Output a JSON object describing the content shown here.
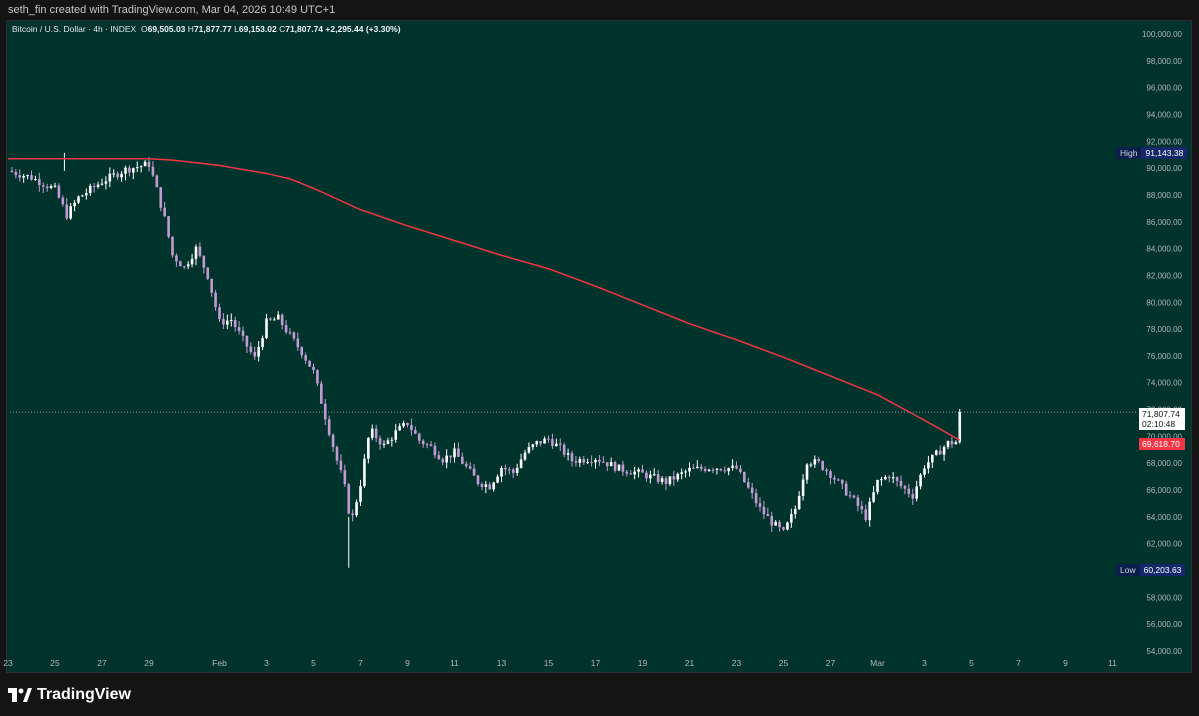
{
  "credit": "seth_fin created with TradingView.com, Mar 04, 2026 10:49 UTC+1",
  "legend": {
    "symbol": "Bitcoin / U.S. Dollar · 4h · INDEX",
    "open_label": "O",
    "open": "69,505.03",
    "high_label": "H",
    "high": "71,877.77",
    "low_label": "L",
    "low": "69,153.02",
    "close_label": "C",
    "close": "71,807.74",
    "change": "+2,295.44 (+3.30%)"
  },
  "markers": {
    "high_label": "High",
    "high_value": "91,143.38",
    "low_label": "Low",
    "low_value": "60,203.63",
    "last_price": "71,807.74",
    "countdown": "02:10:48",
    "ma_value": "69,618.70"
  },
  "brand": "TradingView",
  "colors": {
    "background": "#00332b",
    "up": "#ffffff",
    "down": "#c39bd3",
    "ma_line": "#f23645",
    "price_line": "#b2b5be",
    "axis_text": "#b2b5be"
  },
  "icons": {
    "logo": "tradingview-logo-icon"
  },
  "chart_data": {
    "type": "candlestick",
    "title": "Bitcoin / U.S. Dollar · 4h · INDEX",
    "ylim": [
      53500,
      101000
    ],
    "y_ticks": [
      100000,
      98000,
      96000,
      94000,
      92000,
      90000,
      88000,
      86000,
      84000,
      82000,
      80000,
      78000,
      76000,
      74000,
      72000,
      70000,
      68000,
      66000,
      64000,
      62000,
      60000,
      58000,
      56000,
      54000
    ],
    "y_tick_labels": [
      "100,000.00",
      "98,000.00",
      "96,000.00",
      "94,000.00",
      "92,000.00",
      "90,000.00",
      "88,000.00",
      "86,000.00",
      "84,000.00",
      "82,000.00",
      "80,000.00",
      "78,000.00",
      "76,000.00",
      "74,000.00",
      "72,000.00",
      "70,000.00",
      "68,000.00",
      "66,000.00",
      "64,000.00",
      "62,000.00",
      "60,000.00",
      "58,000.00",
      "56,000.00",
      "54,000.00"
    ],
    "x_ticks": [
      "23",
      "25",
      "27",
      "29",
      "Feb",
      "3",
      "5",
      "7",
      "9",
      "11",
      "13",
      "15",
      "17",
      "19",
      "21",
      "23",
      "25",
      "27",
      "Mar",
      "3",
      "5",
      "7",
      "9",
      "11"
    ],
    "x_tick_days": [
      0,
      2,
      4,
      6,
      9,
      11,
      13,
      15,
      17,
      19,
      21,
      23,
      25,
      27,
      29,
      31,
      33,
      35,
      37,
      39,
      41,
      43,
      45,
      47
    ],
    "candles_per_day": 6,
    "close_path": [
      [
        0,
        89800
      ],
      [
        1,
        89300
      ],
      [
        2,
        88400
      ],
      [
        2.5,
        86500
      ],
      [
        3,
        87800
      ],
      [
        4,
        89000
      ],
      [
        5,
        89900
      ],
      [
        6,
        90300
      ],
      [
        6.3,
        88600
      ],
      [
        6.7,
        86000
      ],
      [
        7,
        83500
      ],
      [
        7.5,
        82600
      ],
      [
        8,
        84000
      ],
      [
        8.5,
        82000
      ],
      [
        9,
        78500
      ],
      [
        9.5,
        78700
      ],
      [
        10,
        77200
      ],
      [
        10.5,
        75800
      ],
      [
        11,
        78500
      ],
      [
        11.5,
        78800
      ],
      [
        12,
        77500
      ],
      [
        12.5,
        76300
      ],
      [
        13,
        74800
      ],
      [
        13.5,
        71500
      ],
      [
        14,
        68200
      ],
      [
        14.3,
        66500
      ],
      [
        14.6,
        63500
      ],
      [
        15,
        66500
      ],
      [
        15.4,
        70500
      ],
      [
        16,
        69300
      ],
      [
        16.5,
        70300
      ],
      [
        17,
        71000
      ],
      [
        17.5,
        69700
      ],
      [
        18,
        69200
      ],
      [
        18.5,
        68300
      ],
      [
        19,
        68800
      ],
      [
        19.5,
        67700
      ],
      [
        20,
        66600
      ],
      [
        20.5,
        66300
      ],
      [
        21,
        67700
      ],
      [
        21.5,
        67300
      ],
      [
        22,
        68800
      ],
      [
        22.5,
        69500
      ],
      [
        23,
        69800
      ],
      [
        23.5,
        69100
      ],
      [
        24,
        68200
      ],
      [
        25,
        68400
      ],
      [
        26,
        67600
      ],
      [
        27,
        67200
      ],
      [
        28,
        66600
      ],
      [
        29,
        67500
      ],
      [
        30,
        67700
      ],
      [
        31,
        67600
      ],
      [
        32,
        64600
      ],
      [
        32.5,
        63600
      ],
      [
        33,
        62800
      ],
      [
        33.5,
        64600
      ],
      [
        34,
        68200
      ],
      [
        34.5,
        68000
      ],
      [
        35,
        67200
      ],
      [
        36,
        65200
      ],
      [
        36.5,
        64000
      ],
      [
        37,
        66600
      ],
      [
        37.5,
        67100
      ],
      [
        38,
        66300
      ],
      [
        38.5,
        65600
      ],
      [
        39,
        67800
      ],
      [
        40,
        69500
      ],
      [
        40.5,
        69618.7
      ],
      [
        40.6,
        71807.74
      ]
    ],
    "moving_average": {
      "name": "",
      "points": [
        [
          0,
          90700
        ],
        [
          3,
          90700
        ],
        [
          6,
          90700
        ],
        [
          7,
          90600
        ],
        [
          9,
          90200
        ],
        [
          11,
          89600
        ],
        [
          12,
          89200
        ],
        [
          13,
          88500
        ],
        [
          14,
          87700
        ],
        [
          15,
          86900
        ],
        [
          17,
          85700
        ],
        [
          19,
          84600
        ],
        [
          21,
          83500
        ],
        [
          23,
          82500
        ],
        [
          25,
          81200
        ],
        [
          27,
          79800
        ],
        [
          29,
          78400
        ],
        [
          31,
          77200
        ],
        [
          33,
          75900
        ],
        [
          35,
          74500
        ],
        [
          37,
          73100
        ],
        [
          39,
          71200
        ],
        [
          40.6,
          69618.7
        ]
      ]
    },
    "current_price": 71807.74,
    "high": 91143.38,
    "low": 60203.63,
    "grid": false,
    "legend_position": "top-left"
  }
}
